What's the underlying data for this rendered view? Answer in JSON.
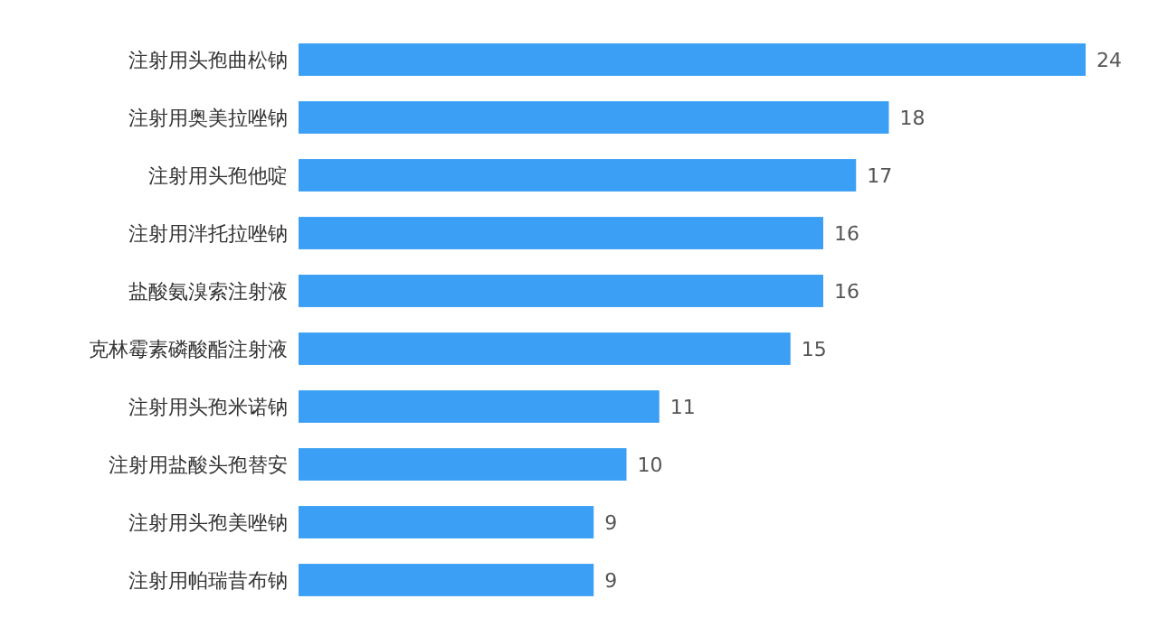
{
  "chart_data": {
    "type": "bar",
    "orientation": "horizontal",
    "categories": [
      "注射用头孢曲松钠",
      "注射用奥美拉唑钠",
      "注射用头孢他啶",
      "注射用泮托拉唑钠",
      "盐酸氨溴索注射液",
      "克林霉素磷酸酯注射液",
      "注射用头孢米诺钠",
      "注射用盐酸头孢替安",
      "注射用头孢美唑钠",
      "注射用帕瑞昔布钠"
    ],
    "values": [
      24,
      18,
      17,
      16,
      16,
      15,
      11,
      10,
      9,
      9
    ],
    "color": "#3a9ff5",
    "data_labels": true
  }
}
